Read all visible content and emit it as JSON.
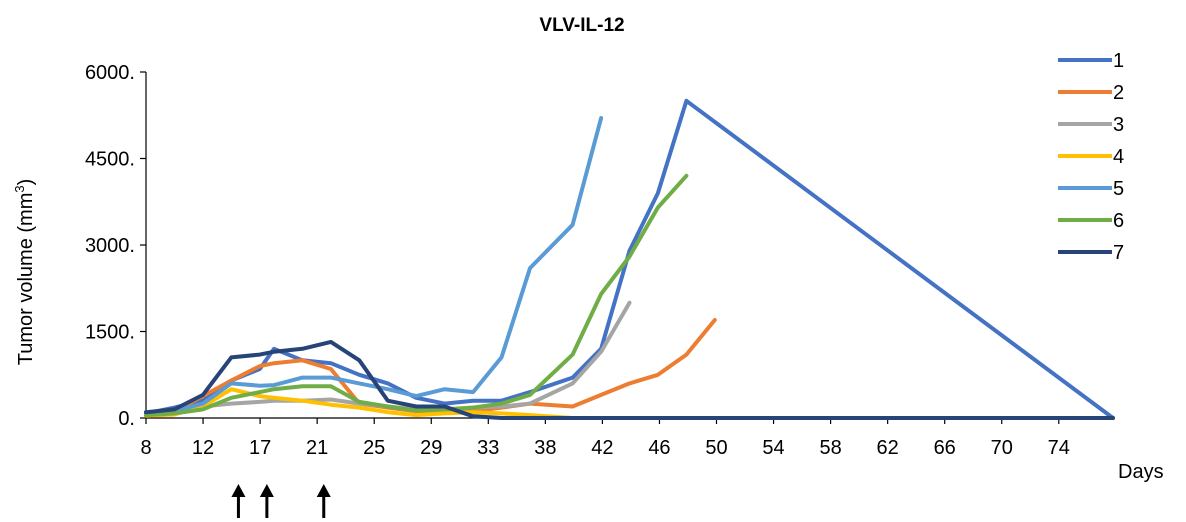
{
  "chart_data": {
    "type": "line",
    "title": "VLV-IL-12",
    "xlabel": "Days",
    "ylabel": "Tumor volume (mm³)",
    "ylabel_main": "Tumor volume (mm",
    "ylabel_sup": "3",
    "ylabel_close": ")",
    "ylim": [
      0,
      6000
    ],
    "yticks": [
      0,
      1500,
      3000,
      4500,
      6000
    ],
    "ytick_labels": [
      "0.",
      "1500.",
      "3000.",
      "4500.",
      "6000."
    ],
    "xlim": [
      8,
      76
    ],
    "xtick_labels": [
      "8",
      "12",
      "17",
      "21",
      "25",
      "29",
      "33",
      "38",
      "42",
      "46",
      "50",
      "54",
      "58",
      "62",
      "66",
      "70",
      "74"
    ],
    "arrows_at_days": [
      14.5,
      16.5,
      20.5
    ],
    "legend_position": "right",
    "grid": false,
    "series": [
      {
        "name": "1",
        "color": "#4472C4",
        "x": [
          8,
          10,
          12,
          14,
          16,
          17,
          19,
          21,
          23,
          25,
          27,
          29,
          31,
          33,
          35,
          38,
          40,
          42,
          44,
          46,
          76
        ],
        "y": [
          80,
          180,
          300,
          650,
          850,
          1200,
          1000,
          950,
          750,
          600,
          350,
          250,
          300,
          300,
          450,
          700,
          1200,
          2900,
          3900,
          5500,
          0
        ]
      },
      {
        "name": "2",
        "color": "#ED7D31",
        "x": [
          8,
          10,
          12,
          14,
          16,
          17,
          19,
          21,
          23,
          25,
          27,
          29,
          31,
          33,
          35,
          38,
          40,
          42,
          44,
          46,
          48
        ],
        "y": [
          60,
          120,
          380,
          650,
          900,
          950,
          1000,
          850,
          250,
          180,
          120,
          100,
          120,
          180,
          250,
          200,
          400,
          600,
          750,
          1100,
          1700
        ]
      },
      {
        "name": "3",
        "color": "#A5A5A5",
        "x": [
          8,
          10,
          12,
          14,
          16,
          17,
          19,
          21,
          23,
          25,
          27,
          29,
          31,
          33,
          35,
          38,
          40,
          42
        ],
        "y": [
          50,
          100,
          200,
          250,
          280,
          300,
          300,
          320,
          250,
          200,
          150,
          150,
          180,
          200,
          250,
          600,
          1150,
          2000
        ]
      },
      {
        "name": "4",
        "color": "#FFC000",
        "x": [
          8,
          10,
          12,
          14,
          16,
          17,
          19,
          21,
          23,
          25,
          27,
          29,
          31,
          33,
          35,
          38,
          76
        ],
        "y": [
          40,
          60,
          200,
          500,
          380,
          350,
          300,
          230,
          180,
          100,
          50,
          80,
          100,
          80,
          50,
          0,
          0
        ]
      },
      {
        "name": "5",
        "color": "#5B9BD5",
        "x": [
          8,
          10,
          12,
          14,
          16,
          17,
          19,
          21,
          23,
          25,
          27,
          29,
          31,
          33,
          35,
          38,
          40
        ],
        "y": [
          100,
          120,
          250,
          600,
          560,
          570,
          700,
          700,
          600,
          500,
          380,
          500,
          450,
          1050,
          2600,
          3350,
          5200
        ]
      },
      {
        "name": "6",
        "color": "#70AD47",
        "x": [
          8,
          10,
          12,
          14,
          16,
          17,
          19,
          21,
          23,
          25,
          27,
          29,
          31,
          33,
          35,
          38,
          40,
          42,
          44,
          46
        ],
        "y": [
          50,
          80,
          150,
          350,
          450,
          500,
          550,
          550,
          280,
          200,
          130,
          150,
          180,
          250,
          400,
          1100,
          2150,
          2800,
          3650,
          4200
        ]
      },
      {
        "name": "7",
        "color": "#264478",
        "x": [
          8,
          10,
          12,
          14,
          16,
          17,
          19,
          21,
          23,
          25,
          27,
          29,
          31,
          33,
          76
        ],
        "y": [
          100,
          150,
          400,
          1050,
          1100,
          1150,
          1200,
          1320,
          1000,
          300,
          200,
          200,
          30,
          0,
          0
        ]
      }
    ]
  }
}
